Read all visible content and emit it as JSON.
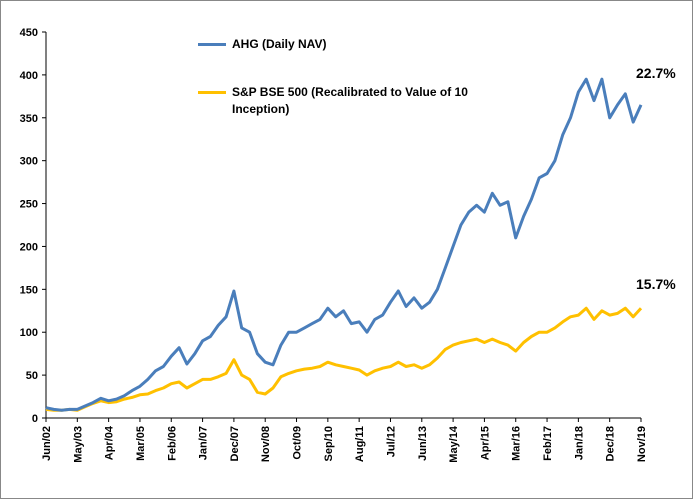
{
  "chart_data": {
    "type": "line",
    "categories": [
      "Jun/02",
      null,
      null,
      null,
      "May/03",
      null,
      null,
      null,
      "Apr/04",
      null,
      null,
      null,
      "Mar/05",
      null,
      null,
      null,
      "Feb/06",
      null,
      null,
      null,
      "Jan/07",
      null,
      null,
      null,
      "Dec/07",
      null,
      null,
      null,
      "Nov/08",
      null,
      null,
      null,
      "Oct/09",
      null,
      null,
      null,
      "Sep/10",
      null,
      null,
      null,
      "Aug/11",
      null,
      null,
      null,
      "Jul/12",
      null,
      null,
      null,
      "Jun/13",
      null,
      null,
      null,
      "May/14",
      null,
      null,
      null,
      "Apr/15",
      null,
      null,
      null,
      "Mar/16",
      null,
      null,
      null,
      "Feb/17",
      null,
      null,
      null,
      "Jan/18",
      null,
      null,
      null,
      "Dec/18",
      null,
      null,
      null,
      "Nov/19"
    ],
    "series": [
      {
        "name": "AHG  (Daily NAV)",
        "color": "#4a7ebb",
        "values": [
          12,
          10,
          9,
          10,
          10,
          14,
          18,
          23,
          20,
          22,
          26,
          32,
          37,
          45,
          55,
          60,
          72,
          82,
          63,
          75,
          90,
          95,
          108,
          118,
          148,
          105,
          100,
          75,
          65,
          62,
          85,
          100,
          100,
          105,
          110,
          115,
          128,
          118,
          125,
          110,
          112,
          100,
          115,
          120,
          135,
          148,
          130,
          140,
          128,
          135,
          150,
          175,
          200,
          225,
          240,
          248,
          240,
          262,
          248,
          252,
          210,
          235,
          255,
          280,
          285,
          300,
          330,
          350,
          380,
          395,
          370,
          395,
          350,
          365,
          378,
          345,
          365
        ]
      },
      {
        "name": "S&P BSE 500  (Recalibrated to Value of 10 Inception)",
        "color": "#ffc000",
        "values": [
          10,
          9,
          9,
          10,
          9,
          13,
          17,
          20,
          18,
          19,
          22,
          24,
          27,
          28,
          32,
          35,
          40,
          42,
          35,
          40,
          45,
          45,
          48,
          52,
          68,
          50,
          45,
          30,
          28,
          35,
          48,
          52,
          55,
          57,
          58,
          60,
          65,
          62,
          60,
          58,
          56,
          50,
          55,
          58,
          60,
          65,
          60,
          62,
          58,
          62,
          70,
          80,
          85,
          88,
          90,
          92,
          88,
          92,
          88,
          85,
          78,
          88,
          95,
          100,
          100,
          105,
          112,
          118,
          120,
          128,
          115,
          125,
          120,
          122,
          128,
          118,
          128
        ]
      }
    ],
    "annotations": [
      "22.7%",
      "15.7%"
    ],
    "ylim": [
      0,
      450
    ],
    "yticks": [
      0,
      50,
      100,
      150,
      200,
      250,
      300,
      350,
      400,
      450
    ],
    "grid": false
  }
}
